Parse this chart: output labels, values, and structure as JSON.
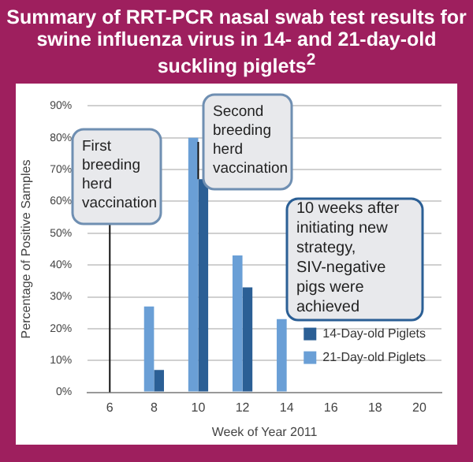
{
  "chart_data": {
    "type": "bar",
    "title": "Summary of RRT-PCR nasal swab test results for swine influenza virus in 14- and 21-day-old suckling piglets$^{2}$",
    "xlabel": "Week of Year 2011",
    "ylabel": "Percentage of Positive Samples",
    "categories": [
      "6",
      "8",
      "10",
      "12",
      "14",
      "16",
      "18",
      "20"
    ],
    "series": [
      {
        "name": "21-Day-old Piglets",
        "color": "#6a9fd6",
        "values": [
          0,
          27,
          80,
          43,
          23,
          0,
          0,
          0
        ]
      },
      {
        "name": "14-Day-old Piglets",
        "color": "#2b5f95",
        "values": [
          0,
          7,
          67,
          33,
          0,
          0,
          0,
          0
        ]
      }
    ],
    "ylim": [
      0,
      90
    ],
    "yticks": [
      {
        "value": 0,
        "label": "0%"
      },
      {
        "value": 10,
        "label": "10%"
      },
      {
        "value": 20,
        "label": "20%"
      },
      {
        "value": 30,
        "label": "30%"
      },
      {
        "value": 40,
        "label": "40%"
      },
      {
        "value": 50,
        "label": "50%"
      },
      {
        "value": 60,
        "label": "60%"
      },
      {
        "value": 70,
        "label": "70%"
      },
      {
        "value": 80,
        "label": "80%"
      },
      {
        "value": 90,
        "label": "90%"
      }
    ],
    "grid": "y",
    "legend": "bottom right",
    "annotations": [
      {
        "text": "First breeding herd vaccination",
        "x": "6",
        "y": 0
      },
      {
        "text": "Second breeding herd vaccination",
        "x": "10",
        "y": 67
      },
      "10 weeks after initiating new strategy, SIV-negative pigs were achieved"
    ]
  }
}
